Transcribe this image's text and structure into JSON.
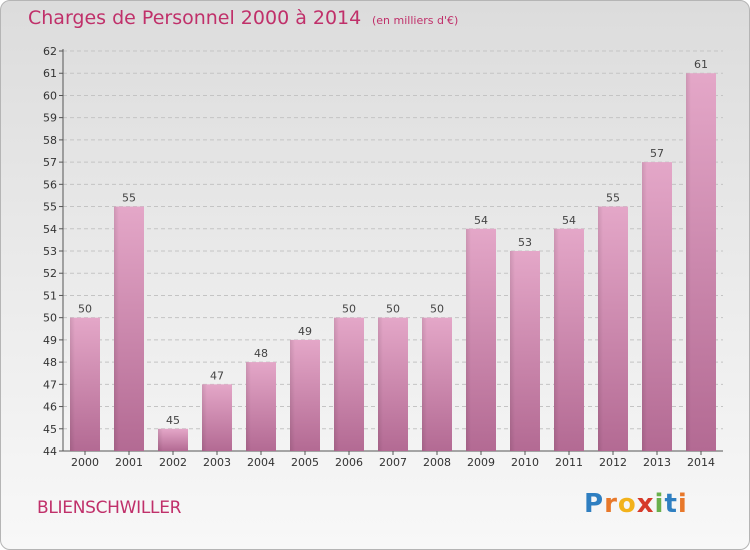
{
  "header": {
    "title": "Charges de Personnel 2000 à 2014",
    "subtitle": "(en milliers d'€)"
  },
  "footer": {
    "commune": "BLIENSCHWILLER",
    "brand_letters": [
      "P",
      "r",
      "o",
      "x",
      "i",
      "t",
      "i"
    ],
    "brand_colors": [
      "#2f7fc1",
      "#e8782a",
      "#f2b21b",
      "#d63a2a",
      "#6ab04c",
      "#2f7fc1",
      "#e8782a"
    ]
  },
  "colors": {
    "bar": "#d98cb3",
    "title": "#c0306a"
  },
  "chart_data": {
    "type": "bar",
    "title": "Charges de Personnel 2000 à 2014",
    "subtitle": "(en milliers d'€)",
    "categories": [
      "2000",
      "2001",
      "2002",
      "2003",
      "2004",
      "2005",
      "2006",
      "2007",
      "2008",
      "2009",
      "2010",
      "2011",
      "2012",
      "2013",
      "2014"
    ],
    "values": [
      50,
      55,
      45,
      47,
      48,
      49,
      50,
      50,
      50,
      54,
      53,
      54,
      55,
      57,
      61
    ],
    "ylim": [
      44,
      62
    ],
    "yticks": [
      44,
      45,
      46,
      47,
      48,
      49,
      50,
      51,
      52,
      53,
      54,
      55,
      56,
      57,
      58,
      59,
      60,
      61,
      62
    ],
    "grid": true,
    "xlabel": "",
    "ylabel": ""
  }
}
